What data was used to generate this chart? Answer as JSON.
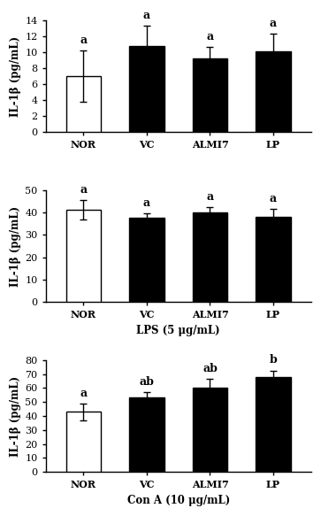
{
  "panels": [
    {
      "ylabel": "IL-1β (pg/mL)",
      "xlabel": "",
      "ylim": [
        0,
        14
      ],
      "yticks": [
        0,
        2,
        4,
        6,
        8,
        10,
        12,
        14
      ],
      "categories": [
        "NOR",
        "VC",
        "ALMI7",
        "LP"
      ],
      "values": [
        7.0,
        10.8,
        9.2,
        10.1
      ],
      "errors": [
        3.2,
        2.5,
        1.5,
        2.2
      ],
      "bar_colors": [
        "white",
        "black",
        "black",
        "black"
      ],
      "bar_edgecolors": [
        "black",
        "black",
        "black",
        "black"
      ],
      "sig_labels": [
        "a",
        "a",
        "a",
        "a"
      ]
    },
    {
      "ylabel": "IL-1β (pg/mL)",
      "xlabel": "LPS (5 μg/mL)",
      "ylim": [
        0,
        50
      ],
      "yticks": [
        0,
        10,
        20,
        30,
        40,
        50
      ],
      "categories": [
        "NOR",
        "VC",
        "ALMI7",
        "LP"
      ],
      "values": [
        41.2,
        37.5,
        40.0,
        38.0
      ],
      "errors": [
        4.5,
        2.0,
        2.5,
        3.5
      ],
      "bar_colors": [
        "white",
        "black",
        "black",
        "black"
      ],
      "bar_edgecolors": [
        "black",
        "black",
        "black",
        "black"
      ],
      "sig_labels": [
        "a",
        "a",
        "a",
        "a"
      ]
    },
    {
      "ylabel": "IL-1β (pg/mL)",
      "xlabel": "Con A (10 μg/mL)",
      "ylim": [
        0,
        80
      ],
      "yticks": [
        0,
        10,
        20,
        30,
        40,
        50,
        60,
        70,
        80
      ],
      "categories": [
        "NOR",
        "VC",
        "ALMI7",
        "LP"
      ],
      "values": [
        43.0,
        53.5,
        60.5,
        67.5
      ],
      "errors": [
        6.0,
        3.5,
        6.0,
        5.0
      ],
      "bar_colors": [
        "white",
        "black",
        "black",
        "black"
      ],
      "bar_edgecolors": [
        "black",
        "black",
        "black",
        "black"
      ],
      "sig_labels": [
        "a",
        "ab",
        "ab",
        "b"
      ]
    }
  ],
  "bar_width": 0.55,
  "tick_fontsize": 8,
  "label_fontsize": 8.5,
  "sig_fontsize": 9,
  "xlabel_fontsize": 8.5,
  "background_color": "#ffffff"
}
